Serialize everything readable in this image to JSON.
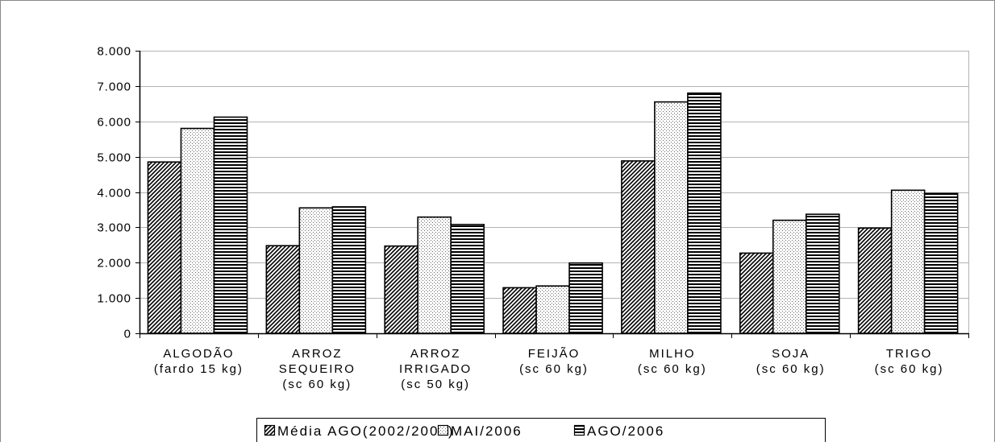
{
  "chart_data": {
    "type": "bar",
    "title": "",
    "xlabel": "",
    "ylabel": "",
    "ylim": [
      0,
      8000
    ],
    "yticks": [
      0,
      1000,
      2000,
      3000,
      4000,
      5000,
      6000,
      7000,
      8000
    ],
    "ytick_labels": [
      "0",
      "1.000",
      "2.000",
      "3.000",
      "4.000",
      "5.000",
      "6.000",
      "7.000",
      "8.000"
    ],
    "grid": true,
    "legend_position": "bottom",
    "categories": [
      [
        "ALGODÃO",
        "(fardo 15 kg)"
      ],
      [
        "ARROZ",
        "SEQUEIRO",
        "(sc 60 kg)"
      ],
      [
        "ARROZ",
        "IRRIGADO",
        "(sc 50 kg)"
      ],
      [
        "FEIJÃO",
        "(sc 60 kg)"
      ],
      [
        "MILHO",
        "(sc 60 kg)"
      ],
      [
        "SOJA",
        "(sc 60 kg)"
      ],
      [
        "TRIGO",
        "(sc 60 kg)"
      ]
    ],
    "series": [
      {
        "name": "Média AGO(2002/2006)",
        "pattern": "diagonal-hatch",
        "values": [
          4850,
          2480,
          2470,
          1290,
          4880,
          2270,
          2980
        ]
      },
      {
        "name": "MAI/2006",
        "pattern": "dots",
        "values": [
          5800,
          3550,
          3290,
          1340,
          6550,
          3200,
          4050
        ]
      },
      {
        "name": "AGO/2006",
        "pattern": "horizontal-lines",
        "values": [
          6120,
          3580,
          3080,
          1990,
          6800,
          3370,
          3960
        ]
      }
    ]
  }
}
